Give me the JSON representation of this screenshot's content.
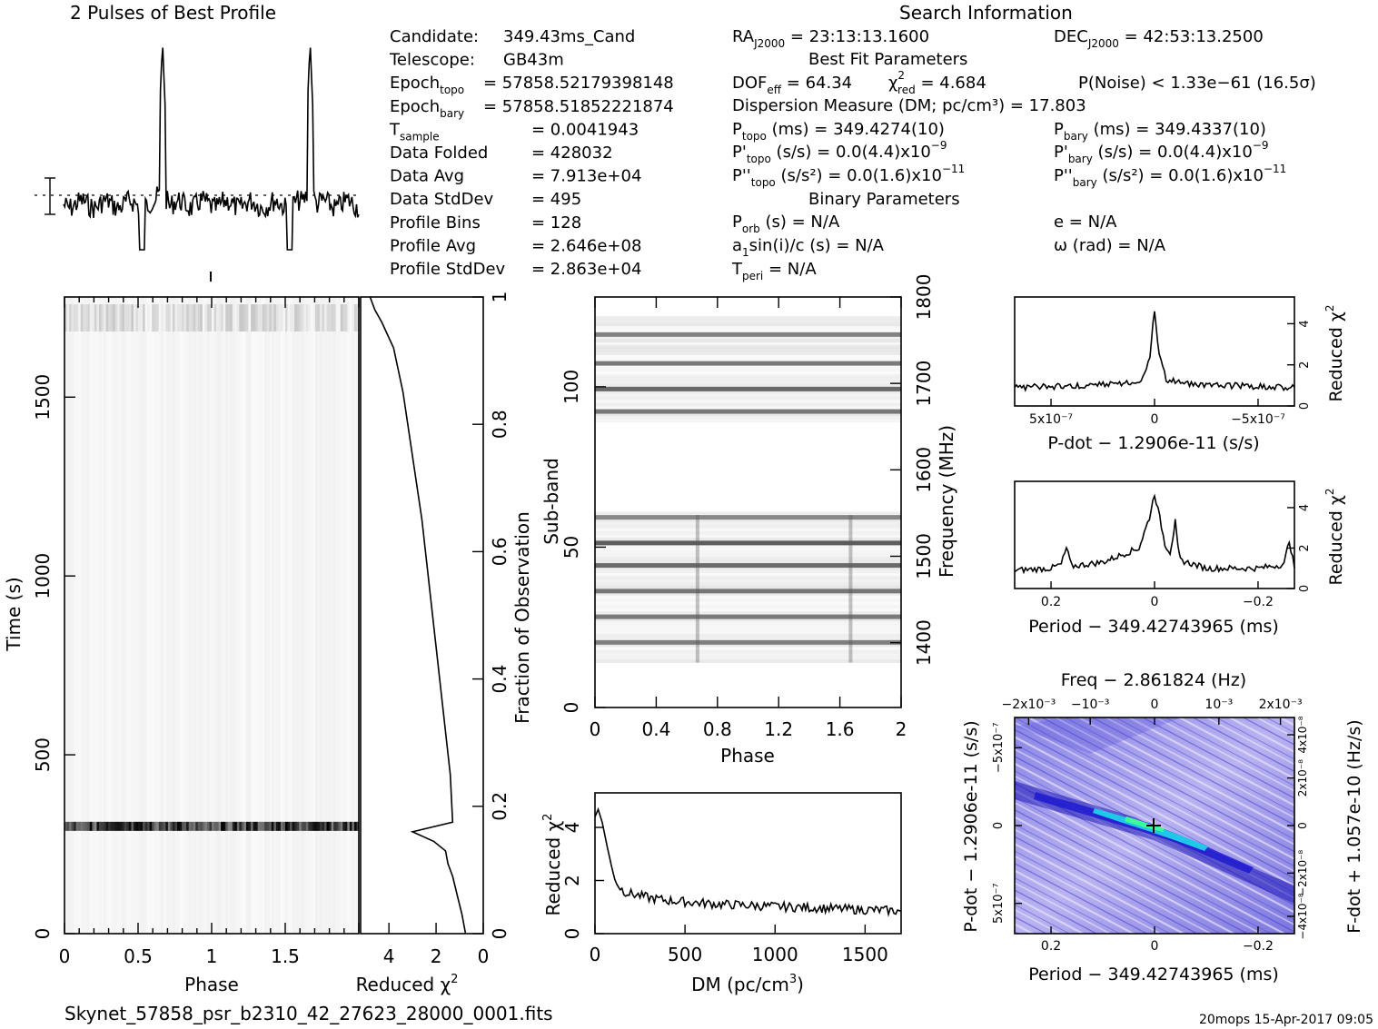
{
  "page": {
    "filename": "Skynet_57858_psr_b2310_42_27623_28000_0001.fits",
    "footer_right": "20mops 15-Apr-2017 09:05"
  },
  "header": {
    "profile_title": "2 Pulses of Best Profile",
    "search_title": "Search Information",
    "best_fit_title": "Best Fit Parameters",
    "binary_title": "Binary Parameters"
  },
  "info_left": [
    {
      "label": "Candidate:",
      "sub": "",
      "value": "349.43ms_Cand"
    },
    {
      "label": "Telescope:",
      "sub": "",
      "value": "GB43m"
    },
    {
      "label": "Epoch",
      "sub": "topo",
      "value": "= 57858.52179398148"
    },
    {
      "label": "Epoch",
      "sub": "bary",
      "value": "= 57858.51852221874"
    },
    {
      "label": "T",
      "sub": "sample",
      "value": "=   0.0041943"
    },
    {
      "label": "Data Folded",
      "sub": "",
      "value": "=   428032"
    },
    {
      "label": "Data Avg",
      "sub": "",
      "value": "=   7.913e+04"
    },
    {
      "label": "Data StdDev",
      "sub": "",
      "value": "=   495"
    },
    {
      "label": "Profile Bins",
      "sub": "",
      "value": "=   128"
    },
    {
      "label": "Profile Avg",
      "sub": "",
      "value": "=   2.646e+08"
    },
    {
      "label": "Profile StdDev",
      "sub": "",
      "value": "=   2.863e+04"
    }
  ],
  "search_info": {
    "ra": {
      "label": "RA",
      "sub": "J2000",
      "value": " = 23:13:13.1600"
    },
    "dec": {
      "label": "DEC",
      "sub": "J2000",
      "value": " = 42:53:13.2500"
    },
    "dof": {
      "label": "DOF",
      "sub": "eff",
      "value": " = 64.34"
    },
    "chi2": {
      "label": "χ",
      "sup": "2",
      "sub": "red",
      "value": " = 4.684"
    },
    "pnoise": "P(Noise) < 1.33e−61   (16.5σ)",
    "dm": "Dispersion Measure (DM; pc/cm³) = 17.803",
    "p_topo": {
      "label": "P",
      "sub": "topo",
      "value": " (ms) =  349.4274(10)"
    },
    "p_bary": {
      "label": "P",
      "sub": "bary",
      "value": " (ms) =  349.4337(10)"
    },
    "pd_topo": {
      "label": "P'",
      "sub": "topo",
      "value": " (s/s) = 0.0(4.4)x10",
      "sup": "−9"
    },
    "pd_bary": {
      "label": "P'",
      "sub": "bary",
      "value": " (s/s) = 0.0(4.4)x10",
      "sup": "−9"
    },
    "pdd_topo": {
      "label": "P''",
      "sub": "topo",
      "value": " (s/s²) = 0.0(1.6)x10",
      "sup": "−11"
    },
    "pdd_bary": {
      "label": "P''",
      "sub": "bary",
      "value": " (s/s²) = 0.0(1.6)x10",
      "sup": "−11"
    },
    "porb": {
      "label": "P",
      "sub": "orb",
      "value": " (s) = N/A"
    },
    "ecc": "e = N/A",
    "asini": {
      "label": "a",
      "sub": "1",
      "value": "sin(i)/c (s) = N/A"
    },
    "omega": "ω (rad) = N/A",
    "tperi": {
      "label": "T",
      "sub": "peri",
      "value": " = N/A"
    }
  },
  "chart_data": [
    {
      "id": "profile",
      "type": "line",
      "title": "2 Pulses of Best Profile",
      "x_range": [
        0,
        2
      ],
      "pulse_phases": [
        0.67,
        1.67
      ],
      "grid": false
    },
    {
      "id": "time_phase",
      "type": "heatmap",
      "xlabel": "Phase",
      "ylabel": "Time (s)",
      "x_ticks": [
        "0",
        "0.5",
        "1",
        "1.5"
      ],
      "y_ticks": [
        "0",
        "500",
        "1000",
        "1500"
      ],
      "xlim": [
        0,
        2
      ],
      "ylim": [
        0,
        1780
      ],
      "bright_band_time": 300
    },
    {
      "id": "chi2_vs_fraction",
      "type": "line",
      "xlabel": "Reduced χ²",
      "ylabel": "Fraction of Observation",
      "x_ticks": [
        "4",
        "2",
        "0"
      ],
      "y_ticks": [
        "0",
        "0.2",
        "0.4",
        "0.6",
        "0.8",
        "1"
      ],
      "x": [
        0.75,
        0.9,
        1.1,
        1.3,
        1.5,
        1.6,
        2.1,
        3.0,
        1.3,
        1.4,
        1.7,
        2.0,
        2.3,
        2.6,
        3.0,
        3.4,
        3.8,
        4.3,
        4.6,
        4.8
      ],
      "y": [
        0.0,
        0.03,
        0.06,
        0.09,
        0.11,
        0.13,
        0.145,
        0.16,
        0.175,
        0.25,
        0.35,
        0.45,
        0.55,
        0.65,
        0.75,
        0.85,
        0.92,
        0.96,
        0.98,
        1.0
      ],
      "xlim": [
        5.2,
        0
      ],
      "ylim": [
        0,
        1
      ]
    },
    {
      "id": "subband_phase",
      "type": "heatmap",
      "xlabel": "Phase",
      "ylabel": "Sub-band",
      "y2label": "Frequency (MHz)",
      "x_ticks": [
        "0",
        "0.4",
        "0.8",
        "1.2",
        "1.6",
        "2"
      ],
      "y_ticks": [
        "0",
        "50",
        "100"
      ],
      "y2_ticks": [
        "1400",
        "1500",
        "1600",
        "1700",
        "1800"
      ],
      "xlim": [
        0,
        2
      ],
      "ylim": [
        0,
        128
      ],
      "dark_subbands": [
        20,
        28,
        36,
        44,
        51,
        59,
        92,
        99,
        107,
        116
      ]
    },
    {
      "id": "dm_chi2",
      "type": "line",
      "xlabel": "DM (pc/cm³)",
      "ylabel": "Reduced χ²",
      "x_ticks": [
        "0",
        "500",
        "1000",
        "1500"
      ],
      "y_ticks": [
        "0",
        "2",
        "4"
      ],
      "x": [
        0,
        17.8,
        40,
        70,
        100,
        130,
        160,
        200,
        300,
        400,
        500,
        600,
        700,
        800,
        900,
        1000,
        1100,
        1200,
        1300,
        1400,
        1500,
        1600,
        1700
      ],
      "y": [
        4.4,
        4.68,
        4.2,
        3.2,
        2.3,
        1.8,
        1.6,
        1.5,
        1.35,
        1.25,
        1.2,
        1.15,
        1.1,
        1.08,
        1.05,
        1.02,
        1.0,
        0.98,
        0.95,
        0.92,
        0.9,
        0.88,
        0.85
      ],
      "xlim": [
        0,
        1700
      ],
      "ylim": [
        0,
        5.3
      ]
    },
    {
      "id": "pdot_chi2",
      "type": "line",
      "xlabel": "P-dot − 1.2906e-11 (s/s)",
      "ylabel": "Reduced χ²",
      "x_ticks": [
        "5x10⁻⁷",
        "0",
        "−5x10⁻⁷"
      ],
      "y_ticks": [
        "0",
        "2",
        "4"
      ],
      "x": [
        -6e-07,
        -3e-07,
        -1.5e-07,
        -5e-08,
        -2e-08,
        0,
        2e-08,
        5e-08,
        1.5e-07,
        3e-07,
        6e-07
      ],
      "y": [
        0.9,
        1.0,
        1.05,
        1.3,
        2.5,
        4.7,
        2.5,
        1.3,
        1.05,
        1.0,
        0.9
      ],
      "xlim": [
        6e-07,
        -6e-07
      ],
      "ylim": [
        0,
        5.3
      ]
    },
    {
      "id": "period_chi2",
      "type": "line",
      "xlabel": "Period − 349.42743965 (ms)",
      "ylabel": "Reduced χ²",
      "x_ticks": [
        "0.2",
        "0",
        "−0.2"
      ],
      "y_ticks": [
        "0",
        "2",
        "4"
      ],
      "x": [
        0.27,
        0.2,
        0.18,
        0.17,
        0.16,
        0.1,
        0.03,
        0.01,
        0,
        -0.01,
        -0.02,
        -0.03,
        -0.035,
        -0.04,
        -0.045,
        -0.05,
        -0.1,
        -0.2,
        -0.25,
        -0.26,
        -0.27
      ],
      "y": [
        0.9,
        1.0,
        1.2,
        2.0,
        1.1,
        1.3,
        2.0,
        3.5,
        4.7,
        3.5,
        2.2,
        1.8,
        2.5,
        3.3,
        2.0,
        1.4,
        1.0,
        1.0,
        1.2,
        2.4,
        1.0
      ],
      "xlim": [
        0.27,
        -0.27
      ],
      "ylim": [
        0,
        5.3
      ]
    },
    {
      "id": "period_pdot",
      "type": "heatmap",
      "title": "Freq − 2.861824 (Hz)",
      "xlabel": "Period − 349.42743965 (ms)",
      "ylabel": "P-dot − 1.2906e-11 (s/s)",
      "y2label": "F-dot + 1.057e-10 (Hz/s)",
      "x_ticks": [
        "0.2",
        "0",
        "−0.2"
      ],
      "x2_ticks": [
        "−2x10⁻³",
        "−10⁻³",
        "0",
        "10⁻³",
        "2x10⁻³"
      ],
      "y_ticks": [
        "5x10⁻⁷",
        "0",
        "−5x10⁻⁷"
      ],
      "y2_ticks": [
        "−4x10⁻⁸",
        "−2x10⁻⁸",
        "0",
        "2x10⁻⁸",
        "4x10⁻⁸"
      ],
      "best_fit": [
        0,
        0
      ]
    }
  ]
}
